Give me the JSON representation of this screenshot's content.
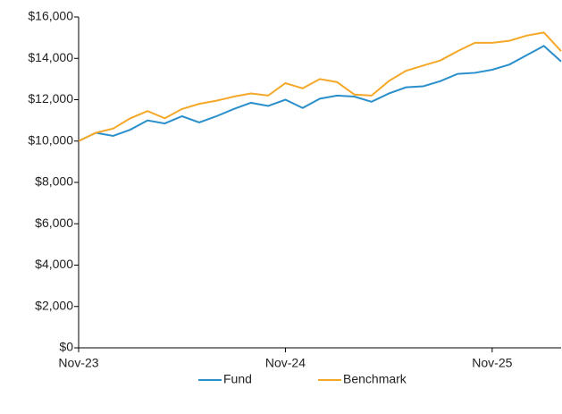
{
  "chart_data": {
    "type": "line",
    "categories": [
      "Nov-23",
      null,
      null,
      null,
      null,
      null,
      null,
      null,
      null,
      null,
      null,
      null,
      "Nov-24",
      null,
      null,
      null,
      null,
      null,
      null,
      null,
      null,
      null,
      null,
      null,
      "Nov-25",
      null,
      null,
      null,
      null
    ],
    "series": [
      {
        "name": "Fund",
        "color": "#2a8fcb",
        "values": [
          10000,
          10400,
          10250,
          10550,
          11000,
          10850,
          11200,
          10900,
          11200,
          11550,
          11850,
          11700,
          12000,
          11600,
          12050,
          12200,
          12150,
          11900,
          12300,
          12600,
          12650,
          12900,
          13250,
          13300,
          13450,
          13700,
          14150,
          14600,
          13850
        ]
      },
      {
        "name": "Benchmark",
        "color": "#f5a828",
        "values": [
          10000,
          10400,
          10600,
          11100,
          11450,
          11100,
          11550,
          11800,
          11950,
          12150,
          12300,
          12200,
          12800,
          12550,
          13000,
          12850,
          12250,
          12200,
          12900,
          13400,
          13650,
          13900,
          14350,
          14750,
          14750,
          14850,
          15100,
          15250,
          14350
        ]
      }
    ],
    "ylim": [
      0,
      16000
    ],
    "yticks": [
      {
        "value": 0,
        "label": "$0"
      },
      {
        "value": 2000,
        "label": "$2,000"
      },
      {
        "value": 4000,
        "label": "$4,000"
      },
      {
        "value": 6000,
        "label": "$6,000"
      },
      {
        "value": 8000,
        "label": "$8,000"
      },
      {
        "value": 10000,
        "label": "$10,000"
      },
      {
        "value": 12000,
        "label": "$12,000"
      },
      {
        "value": 14000,
        "label": "$14,000"
      },
      {
        "value": 16000,
        "label": "$16,000"
      }
    ],
    "grid": false,
    "legend": "bottom"
  }
}
